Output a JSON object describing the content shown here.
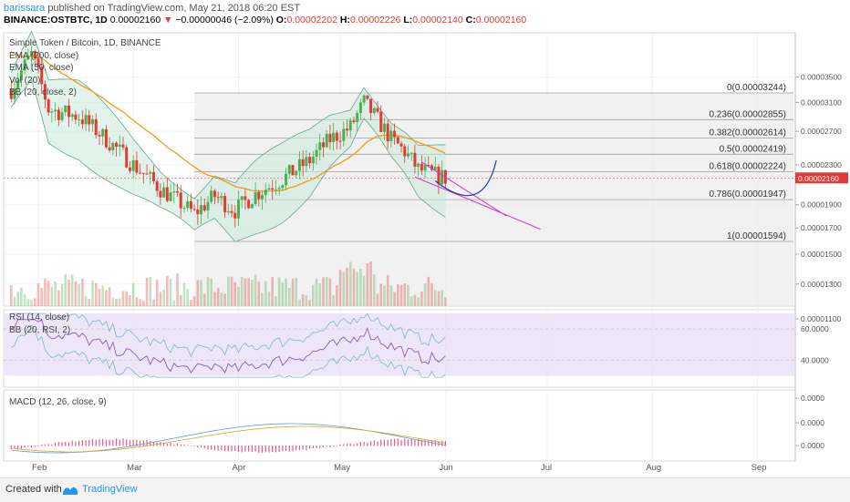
{
  "header": {
    "author": "barissara",
    "published": "published on TradingView.com, May 21, 2018 06:20 EST",
    "symbol": "BINANCE:OSTBTC, 1D",
    "last": "0.00002160",
    "change_arrow": "▼",
    "change": "−0.00000046 (−2.09%)",
    "o_label": "O:",
    "o_value": "0.00002202",
    "h_label": "H:",
    "h_value": "0.00002226",
    "l_label": "L:",
    "l_value": "0.00002140",
    "c_label": "C:",
    "c_value": "0.00002160"
  },
  "legends": {
    "main": [
      "Simple Token / Bitcoin, 1D, BINANCE",
      "EMA (200, close)",
      "EMA (50, close)",
      "Vol (20)",
      "BB (20, close, 2)"
    ],
    "rsi": [
      "RSI (14, close)",
      "BB (20, RSI, 2)"
    ],
    "macd": [
      "MACD (12, 26, close, 9)"
    ]
  },
  "footer": {
    "created": "Created with",
    "brand": "TradingView"
  },
  "colors": {
    "up": "#4caf50",
    "down": "#e53935",
    "ema50": "#f39c12",
    "bb_fill": "#c8ead9",
    "fib_box": "#ececec",
    "wedge": "#d633cc",
    "projection": "#1a3faa",
    "rsi_band": "#e6dcf7",
    "accent": "#2196f3"
  },
  "chart_data": [
    {
      "type": "candlestick",
      "title": "Simple Token / Bitcoin, 1D, BINANCE",
      "x_ticks": [
        "Feb",
        "Mar",
        "Apr",
        "May",
        "Jun",
        "Jul",
        "Aug",
        "Sep"
      ],
      "y_ticks": [
        "0.00003500",
        "0.00003100",
        "0.00002700",
        "0.00002300",
        "0.00001900",
        "0.00001700",
        "0.00001500",
        "0.00001300",
        "0.00001100"
      ],
      "y_ticks_values": [
        3.5e-05,
        3.1e-05,
        2.7e-05,
        2.3e-05,
        1.9e-05,
        1.7e-05,
        1.5e-05,
        1.3e-05,
        1.1e-05
      ],
      "y_scale": "log",
      "last_price_label": "0.00002160",
      "fibonacci": [
        {
          "label": "0(0.00003244)",
          "value": 3.244e-05
        },
        {
          "label": "0.236(0.00002855)",
          "value": 2.855e-05
        },
        {
          "label": "0.382(0.00002614)",
          "value": 2.614e-05
        },
        {
          "label": "0.5(0.00002419)",
          "value": 2.419e-05
        },
        {
          "label": "0.618(0.00002224)",
          "value": 2.224e-05
        },
        {
          "label": "0.786(0.00001947)",
          "value": 1.947e-05
        },
        {
          "label": "1(0.00001594)",
          "value": 1.594e-05
        }
      ]
    },
    {
      "type": "line",
      "title": "RSI (14, close)",
      "y_ticks": [
        "60.0000",
        "40.0000"
      ],
      "y_ticks_values": [
        60,
        40
      ]
    },
    {
      "type": "bar",
      "title": "MACD (12, 26, close, 9)",
      "y_ticks": [
        "0.0000",
        "0.0000",
        "0.0000"
      ]
    }
  ]
}
